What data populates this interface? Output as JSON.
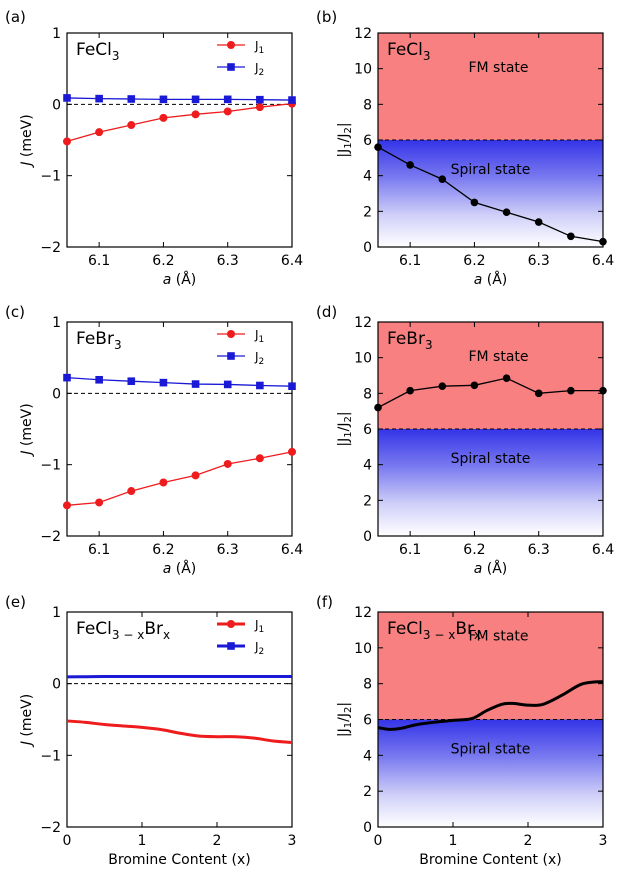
{
  "colors": {
    "j1": "#ee1c1c",
    "j2": "#1a1ad6",
    "ratio": "#000000",
    "fm": "#f88080",
    "spiral": "#3a3ae6"
  },
  "chart_data": [
    {
      "id": "a",
      "type": "line",
      "panel_label": "(a)",
      "material": "FeCl",
      "material_sub": "3",
      "material_mid": "",
      "material_end": "",
      "xlabel_italic": "a",
      "xlabel_rest": " (Å)",
      "ylabel_italic": "J",
      "ylabel_rest": " (meV)",
      "xlim": [
        6.05,
        6.4
      ],
      "ylim": [
        -2,
        1
      ],
      "xticks": [
        "6.1",
        "6.2",
        "6.3",
        "6.4"
      ],
      "yticks": [
        "−2",
        "−1",
        "0",
        "1"
      ],
      "reference_line_y": 0,
      "legend": {
        "items": [
          {
            "name": "J",
            "sub": "1"
          },
          {
            "name": "J",
            "sub": "2"
          }
        ]
      },
      "x": [
        6.05,
        6.1,
        6.15,
        6.2,
        6.25,
        6.3,
        6.35,
        6.4
      ],
      "series": [
        {
          "key": "J1",
          "marker": "circle",
          "values": [
            -0.52,
            -0.39,
            -0.29,
            -0.19,
            -0.14,
            -0.1,
            -0.04,
            0.01
          ]
        },
        {
          "key": "J2",
          "marker": "square",
          "values": [
            0.09,
            0.08,
            0.075,
            0.07,
            0.07,
            0.07,
            0.065,
            0.06
          ]
        }
      ]
    },
    {
      "id": "b",
      "type": "line",
      "panel_label": "(b)",
      "material": "FeCl",
      "material_sub": "3",
      "material_mid": "",
      "material_end": "",
      "xlabel_italic": "a",
      "xlabel_rest": " (Å)",
      "ylabel_parts": [
        "|J",
        "1",
        "/J",
        "2",
        "|"
      ],
      "xlim": [
        6.05,
        6.4
      ],
      "ylim": [
        0,
        12
      ],
      "xticks": [
        "6.1",
        "6.2",
        "6.3",
        "6.4"
      ],
      "yticks": [
        "0",
        "2",
        "4",
        "6",
        "8",
        "10",
        "12"
      ],
      "threshold": 6,
      "fm_label": "FM state",
      "spiral_label": "Spiral state",
      "x": [
        6.05,
        6.1,
        6.15,
        6.2,
        6.25,
        6.3,
        6.35,
        6.4
      ],
      "values": [
        5.6,
        4.6,
        3.8,
        2.5,
        1.95,
        1.4,
        0.6,
        0.3
      ]
    },
    {
      "id": "c",
      "type": "line",
      "panel_label": "(c)",
      "material": "FeBr",
      "material_sub": "3",
      "material_mid": "",
      "material_end": "",
      "xlabel_italic": "a",
      "xlabel_rest": " (Å)",
      "ylabel_italic": "J",
      "ylabel_rest": " (meV)",
      "xlim": [
        6.05,
        6.4
      ],
      "ylim": [
        -2,
        1
      ],
      "xticks": [
        "6.1",
        "6.2",
        "6.3",
        "6.4"
      ],
      "yticks": [
        "−2",
        "−1",
        "0",
        "1"
      ],
      "reference_line_y": 0,
      "legend": {
        "items": [
          {
            "name": "J",
            "sub": "1"
          },
          {
            "name": "J",
            "sub": "2"
          }
        ]
      },
      "x": [
        6.05,
        6.1,
        6.15,
        6.2,
        6.25,
        6.3,
        6.35,
        6.4
      ],
      "series": [
        {
          "key": "J1",
          "marker": "circle",
          "values": [
            -1.57,
            -1.53,
            -1.37,
            -1.25,
            -1.15,
            -0.99,
            -0.91,
            -0.82
          ]
        },
        {
          "key": "J2",
          "marker": "square",
          "values": [
            0.22,
            0.19,
            0.17,
            0.15,
            0.13,
            0.125,
            0.11,
            0.1
          ]
        }
      ]
    },
    {
      "id": "d",
      "type": "line",
      "panel_label": "(d)",
      "material": "FeBr",
      "material_sub": "3",
      "material_mid": "",
      "material_end": "",
      "xlabel_italic": "a",
      "xlabel_rest": " (Å)",
      "ylabel_parts": [
        "|J",
        "1",
        "/J",
        "2",
        "|"
      ],
      "xlim": [
        6.05,
        6.4
      ],
      "ylim": [
        0,
        12
      ],
      "xticks": [
        "6.1",
        "6.2",
        "6.3",
        "6.4"
      ],
      "yticks": [
        "0",
        "2",
        "4",
        "6",
        "8",
        "10",
        "12"
      ],
      "threshold": 6,
      "fm_label": "FM state",
      "spiral_label": "Spiral state",
      "x": [
        6.05,
        6.1,
        6.15,
        6.2,
        6.25,
        6.3,
        6.35,
        6.4
      ],
      "values": [
        7.2,
        8.15,
        8.4,
        8.45,
        8.85,
        8.0,
        8.15,
        8.15
      ]
    },
    {
      "id": "e",
      "type": "line",
      "panel_label": "(e)",
      "material": "FeCl",
      "material_sub": "3 − x",
      "material_mid": "Br",
      "material_end": "x",
      "xlabel_plain": "Bromine Content (x)",
      "ylabel_italic": "J",
      "ylabel_rest": " (meV)",
      "xlim": [
        0,
        3
      ],
      "ylim": [
        -2,
        1
      ],
      "xticks": [
        "0",
        "1",
        "2",
        "3"
      ],
      "yticks": [
        "−2",
        "−1",
        "0",
        "1"
      ],
      "reference_line_y": 0,
      "legend": {
        "items": [
          {
            "name": "J",
            "sub": "1"
          },
          {
            "name": "J",
            "sub": "2"
          }
        ]
      },
      "x": [
        0,
        0.25,
        0.5,
        0.75,
        1.0,
        1.25,
        1.5,
        1.75,
        2.0,
        2.25,
        2.5,
        2.75,
        3.0
      ],
      "series": [
        {
          "key": "J1",
          "marker": "none",
          "values": [
            -0.52,
            -0.54,
            -0.57,
            -0.59,
            -0.61,
            -0.64,
            -0.69,
            -0.73,
            -0.74,
            -0.74,
            -0.76,
            -0.8,
            -0.82
          ]
        },
        {
          "key": "J2",
          "marker": "none",
          "values": [
            0.095,
            0.097,
            0.1,
            0.1,
            0.1,
            0.1,
            0.1,
            0.1,
            0.1,
            0.1,
            0.1,
            0.1,
            0.1
          ]
        }
      ]
    },
    {
      "id": "f",
      "type": "line",
      "panel_label": "(f)",
      "material": "FeCl",
      "material_sub": "3 − x",
      "material_mid": "Br",
      "material_end": "x",
      "xlabel_plain": "Bromine Content (x)",
      "ylabel_parts": [
        "|J",
        "1",
        "/J",
        "2",
        "|"
      ],
      "xlim": [
        0,
        3
      ],
      "ylim": [
        0,
        12
      ],
      "xticks": [
        "0",
        "1",
        "2",
        "3"
      ],
      "yticks": [
        "0",
        "2",
        "4",
        "6",
        "8",
        "10",
        "12"
      ],
      "threshold": 6,
      "fm_label": "FM state",
      "spiral_label": "Spiral state",
      "x": [
        0,
        0.15,
        0.3,
        0.5,
        0.75,
        1.0,
        1.25,
        1.45,
        1.65,
        1.8,
        2.0,
        2.2,
        2.45,
        2.7,
        2.9,
        3.0
      ],
      "values": [
        5.55,
        5.45,
        5.5,
        5.7,
        5.85,
        5.95,
        6.05,
        6.5,
        6.85,
        6.9,
        6.8,
        6.85,
        7.35,
        7.95,
        8.1,
        8.1
      ]
    }
  ]
}
